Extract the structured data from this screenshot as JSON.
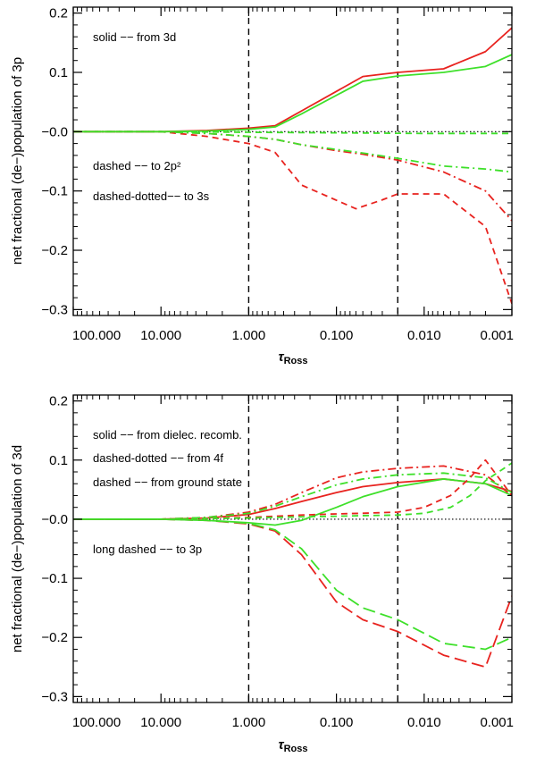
{
  "chart_data": [
    {
      "type": "line",
      "panel": "top",
      "ylabel": "net fractional (de−)population of 3p",
      "xlabel_main": "τ",
      "xlabel_sub": "Ross",
      "x_scale": "log10 reversed",
      "xlim": [
        100,
        0.001
      ],
      "ylim": [
        -0.31,
        0.21
      ],
      "xticks": [
        100,
        10,
        1,
        0.1,
        0.01,
        0.001
      ],
      "xtick_labels": [
        "100.000",
        "10.000",
        "1.000",
        "0.100",
        "0.010",
        "0.001"
      ],
      "yticks": [
        -0.3,
        -0.2,
        -0.1,
        0.0,
        0.1,
        0.2
      ],
      "ytick_labels": [
        "−0.3",
        "−0.2",
        "−0.1",
        "−0.0",
        "0.1",
        "0.2"
      ],
      "vlines": [
        1.0,
        0.02
      ],
      "zero_line": true,
      "legend": [
        {
          "text": "solid  −− from 3d",
          "position": "top-left"
        },
        {
          "text": "dashed  −− to 2p²",
          "position": "lower-left"
        },
        {
          "text": "dashed-dotted−− to 3s",
          "position": "lower-left"
        }
      ],
      "series": [
        {
          "name": "red solid (from 3d)",
          "color": "#e8231f",
          "style": "solid",
          "x": [
            100,
            10,
            3,
            1,
            0.5,
            0.25,
            0.05,
            0.03,
            0.02,
            0.006,
            0.002,
            0.001
          ],
          "y": [
            0.0,
            0.0,
            0.002,
            0.006,
            0.01,
            0.035,
            0.093,
            0.097,
            0.1,
            0.106,
            0.135,
            0.175
          ]
        },
        {
          "name": "green solid (from 3d)",
          "color": "#3ee02a",
          "style": "solid",
          "x": [
            100,
            10,
            3,
            1,
            0.5,
            0.25,
            0.05,
            0.03,
            0.02,
            0.006,
            0.002,
            0.001
          ],
          "y": [
            0.0,
            0.0,
            0.001,
            0.004,
            0.008,
            0.03,
            0.085,
            0.09,
            0.094,
            0.1,
            0.11,
            0.13
          ]
        },
        {
          "name": "red dashed (to 2p²)",
          "color": "#e8231f",
          "style": "dashed",
          "x": [
            100,
            10,
            3,
            1,
            0.5,
            0.25,
            0.06,
            0.03,
            0.02,
            0.006,
            0.002,
            0.001
          ],
          "y": [
            0.0,
            0.0,
            -0.008,
            -0.02,
            -0.035,
            -0.09,
            -0.13,
            -0.115,
            -0.105,
            -0.105,
            -0.16,
            -0.29
          ]
        },
        {
          "name": "red dash-dot (to 3s)",
          "color": "#e8231f",
          "style": "dashdot",
          "x": [
            100,
            10,
            3,
            1,
            0.5,
            0.25,
            0.1,
            0.05,
            0.02,
            0.006,
            0.002,
            0.001
          ],
          "y": [
            0.0,
            0.0,
            -0.003,
            -0.008,
            -0.013,
            -0.022,
            -0.032,
            -0.038,
            -0.048,
            -0.068,
            -0.1,
            -0.15
          ]
        },
        {
          "name": "green dash-dot (to 3s)",
          "color": "#3ee02a",
          "style": "dashdot",
          "x": [
            100,
            10,
            3,
            1,
            0.5,
            0.25,
            0.1,
            0.05,
            0.02,
            0.006,
            0.002,
            0.001
          ],
          "y": [
            0.0,
            0.0,
            -0.003,
            -0.008,
            -0.013,
            -0.022,
            -0.03,
            -0.036,
            -0.045,
            -0.058,
            -0.063,
            -0.068
          ]
        },
        {
          "name": "green dashed (to 2p²)",
          "color": "#3ee02a",
          "style": "dashed",
          "x": [
            100,
            10,
            1,
            0.1,
            0.01,
            0.001
          ],
          "y": [
            0.0,
            0.0,
            -0.001,
            -0.002,
            -0.003,
            -0.003
          ]
        }
      ]
    },
    {
      "type": "line",
      "panel": "bottom",
      "ylabel": "net fractional (de−)population of 3d",
      "xlabel_main": "τ",
      "xlabel_sub": "Ross",
      "x_scale": "log10 reversed",
      "xlim": [
        100,
        0.001
      ],
      "ylim": [
        -0.31,
        0.21
      ],
      "xticks": [
        100,
        10,
        1,
        0.1,
        0.01,
        0.001
      ],
      "xtick_labels": [
        "100.000",
        "10.000",
        "1.000",
        "0.100",
        "0.010",
        "0.001"
      ],
      "yticks": [
        -0.3,
        -0.2,
        -0.1,
        0.0,
        0.1,
        0.2
      ],
      "ytick_labels": [
        "−0.3",
        "−0.2",
        "−0.1",
        "−0.0",
        "0.1",
        "0.2"
      ],
      "vlines": [
        1.0,
        0.02
      ],
      "zero_line": true,
      "legend": [
        {
          "text": "solid  −− from dielec. recomb.",
          "position": "top-left"
        },
        {
          "text": "dashed-dotted  −− from 4f",
          "position": "top-left"
        },
        {
          "text": "dashed  −− from ground state",
          "position": "top-left"
        },
        {
          "text": "long dashed  −− to 3p",
          "position": "middle-left"
        }
      ],
      "series": [
        {
          "name": "red solid (dielec. recomb.)",
          "color": "#e8231f",
          "style": "solid",
          "x": [
            100,
            10,
            3,
            1,
            0.5,
            0.25,
            0.1,
            0.05,
            0.02,
            0.006,
            0.002,
            0.001
          ],
          "y": [
            0.0,
            0.0,
            0.002,
            0.008,
            0.018,
            0.03,
            0.045,
            0.055,
            0.062,
            0.068,
            0.06,
            0.047
          ]
        },
        {
          "name": "green solid (dielec. recomb.)",
          "color": "#3ee02a",
          "style": "solid",
          "x": [
            100,
            10,
            3,
            1,
            0.5,
            0.25,
            0.1,
            0.05,
            0.02,
            0.006,
            0.002,
            0.001
          ],
          "y": [
            0.0,
            0.0,
            -0.002,
            -0.006,
            -0.01,
            -0.002,
            0.02,
            0.038,
            0.055,
            0.068,
            0.06,
            0.04
          ]
        },
        {
          "name": "red dash-dot (from 4f)",
          "color": "#e8231f",
          "style": "dashdot",
          "x": [
            100,
            10,
            3,
            1,
            0.5,
            0.25,
            0.1,
            0.05,
            0.02,
            0.006,
            0.002,
            0.001
          ],
          "y": [
            0.0,
            0.0,
            0.003,
            0.012,
            0.025,
            0.045,
            0.07,
            0.08,
            0.086,
            0.09,
            0.075,
            0.04
          ]
        },
        {
          "name": "green dash-dot (from 4f)",
          "color": "#3ee02a",
          "style": "dashdot",
          "x": [
            100,
            10,
            3,
            1,
            0.5,
            0.25,
            0.1,
            0.05,
            0.02,
            0.006,
            0.002,
            0.001
          ],
          "y": [
            0.0,
            0.0,
            0.003,
            0.01,
            0.022,
            0.038,
            0.058,
            0.068,
            0.075,
            0.078,
            0.07,
            0.045
          ]
        },
        {
          "name": "red dashed (from ground state)",
          "color": "#e8231f",
          "style": "dashed",
          "x": [
            100,
            10,
            3,
            1,
            0.5,
            0.25,
            0.1,
            0.05,
            0.02,
            0.01,
            0.005,
            0.003,
            0.002,
            0.001
          ],
          "y": [
            0.0,
            0.0,
            0.001,
            0.003,
            0.005,
            0.007,
            0.009,
            0.01,
            0.012,
            0.02,
            0.04,
            0.07,
            0.1,
            0.04
          ]
        },
        {
          "name": "green dashed (from ground state)",
          "color": "#3ee02a",
          "style": "dashed",
          "x": [
            100,
            10,
            3,
            1,
            0.5,
            0.25,
            0.1,
            0.05,
            0.02,
            0.01,
            0.005,
            0.003,
            0.002,
            0.001
          ],
          "y": [
            0.0,
            0.0,
            0.001,
            0.002,
            0.003,
            0.004,
            0.005,
            0.006,
            0.007,
            0.01,
            0.02,
            0.04,
            0.065,
            0.095
          ]
        },
        {
          "name": "red long dashed (to 3p)",
          "color": "#e8231f",
          "style": "longdash",
          "x": [
            100,
            10,
            3,
            1,
            0.5,
            0.25,
            0.1,
            0.05,
            0.02,
            0.006,
            0.002,
            0.001
          ],
          "y": [
            0.0,
            0.0,
            -0.002,
            -0.008,
            -0.02,
            -0.06,
            -0.14,
            -0.17,
            -0.19,
            -0.23,
            -0.25,
            -0.13
          ]
        },
        {
          "name": "green long dashed (to 3p)",
          "color": "#3ee02a",
          "style": "longdash",
          "x": [
            100,
            10,
            3,
            1,
            0.5,
            0.25,
            0.1,
            0.05,
            0.02,
            0.006,
            0.002,
            0.001
          ],
          "y": [
            0.0,
            0.0,
            -0.002,
            -0.007,
            -0.018,
            -0.05,
            -0.12,
            -0.15,
            -0.17,
            -0.21,
            -0.22,
            -0.2
          ]
        }
      ]
    }
  ]
}
